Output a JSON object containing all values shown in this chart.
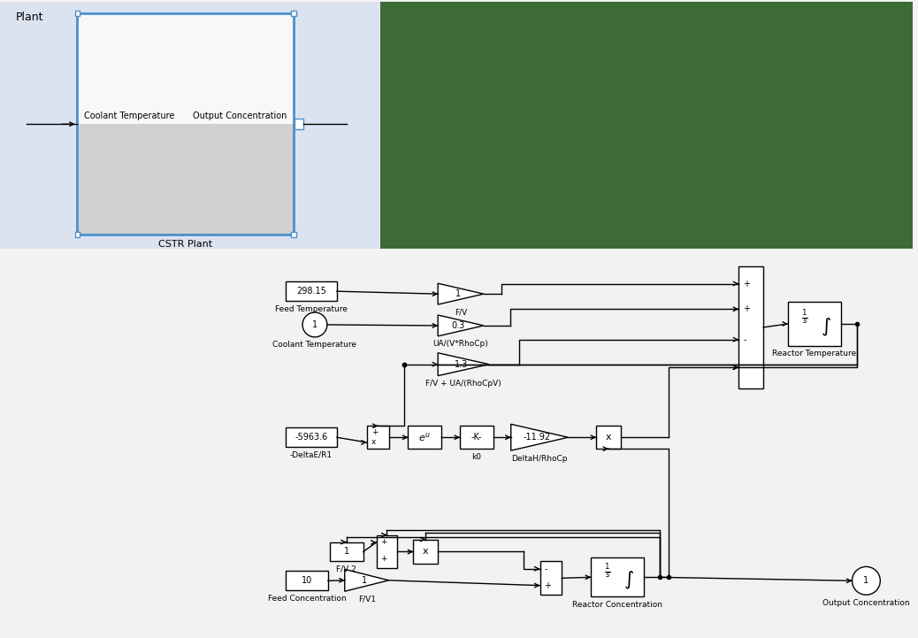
{
  "plant_bg": "#dce3f0",
  "dark_green": "#3d6b35",
  "diagram_bg": "#f2f2f2",
  "white": "#ffffff",
  "light_gray": "#d4d4d4",
  "blue_border": "#4d8fcc",
  "black": "#000000",
  "title_plant": "Plant",
  "label_cstr": "CSTR Plant",
  "label_coolant_in": "Coolant Temperature",
  "label_output_conc_in": "Output Concentration",
  "label_feed_temp": "Feed Temperature",
  "label_coolant_temp": "Coolant Temperature",
  "label_FV": "F/V",
  "label_UA": "UA/(V*RhoCp)",
  "label_FV_UA": "F/V + UA/(RhoCpV)",
  "label_deltaE": "-DeltaE/R1",
  "label_k0": "k0",
  "label_deltaH": "DeltaH/RhoCp",
  "label_FV2": "F/V 2",
  "label_feed_conc": "Feed Concentration",
  "label_FV1": "F/V1",
  "label_reactor_temp": "Reactor Temperature",
  "label_reactor_conc": "Reactor Concentration",
  "label_output_conc": "Output Concentration",
  "val_298": "298.15",
  "val_1": "1",
  "val_03": "0.3",
  "val_13": "1.3",
  "val_5963": "-5963.6",
  "val_1192": "-11.92",
  "val_10": "10"
}
